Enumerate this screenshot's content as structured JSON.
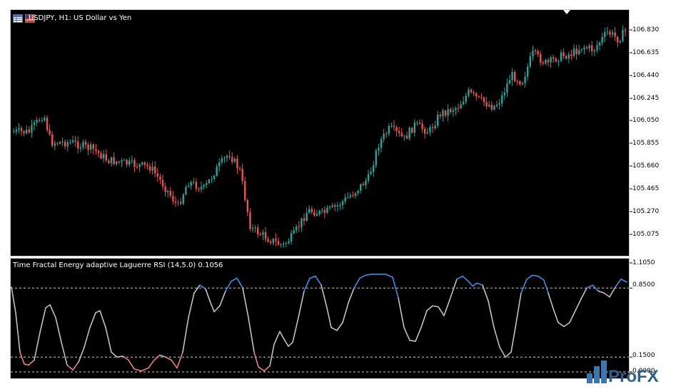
{
  "chart": {
    "title": "USDJPY, H1:  US Dollar vs Yen",
    "price_axis": [
      "106.830",
      "106.635",
      "106.440",
      "106.245",
      "106.050",
      "105.855",
      "105.660",
      "105.465",
      "105.270",
      "105.075"
    ]
  },
  "indicator": {
    "title": "Time Fractal Energy adaptive Laguerre RSI (14,5.0) 0.1056",
    "axis": [
      "1.1050",
      "0.8500",
      "0.1500",
      "0.0000"
    ],
    "levels": [
      0.85,
      0.15,
      0.0
    ]
  },
  "colors": {
    "bull": "#26a69a",
    "bear": "#ef5350",
    "line_mid": "#c0c0c0",
    "line_high": "#3a8ee6",
    "line_low": "#e8808a"
  },
  "logo": {
    "text": "ProFX"
  },
  "icons": [
    "table-icon",
    "flag-icon"
  ]
}
